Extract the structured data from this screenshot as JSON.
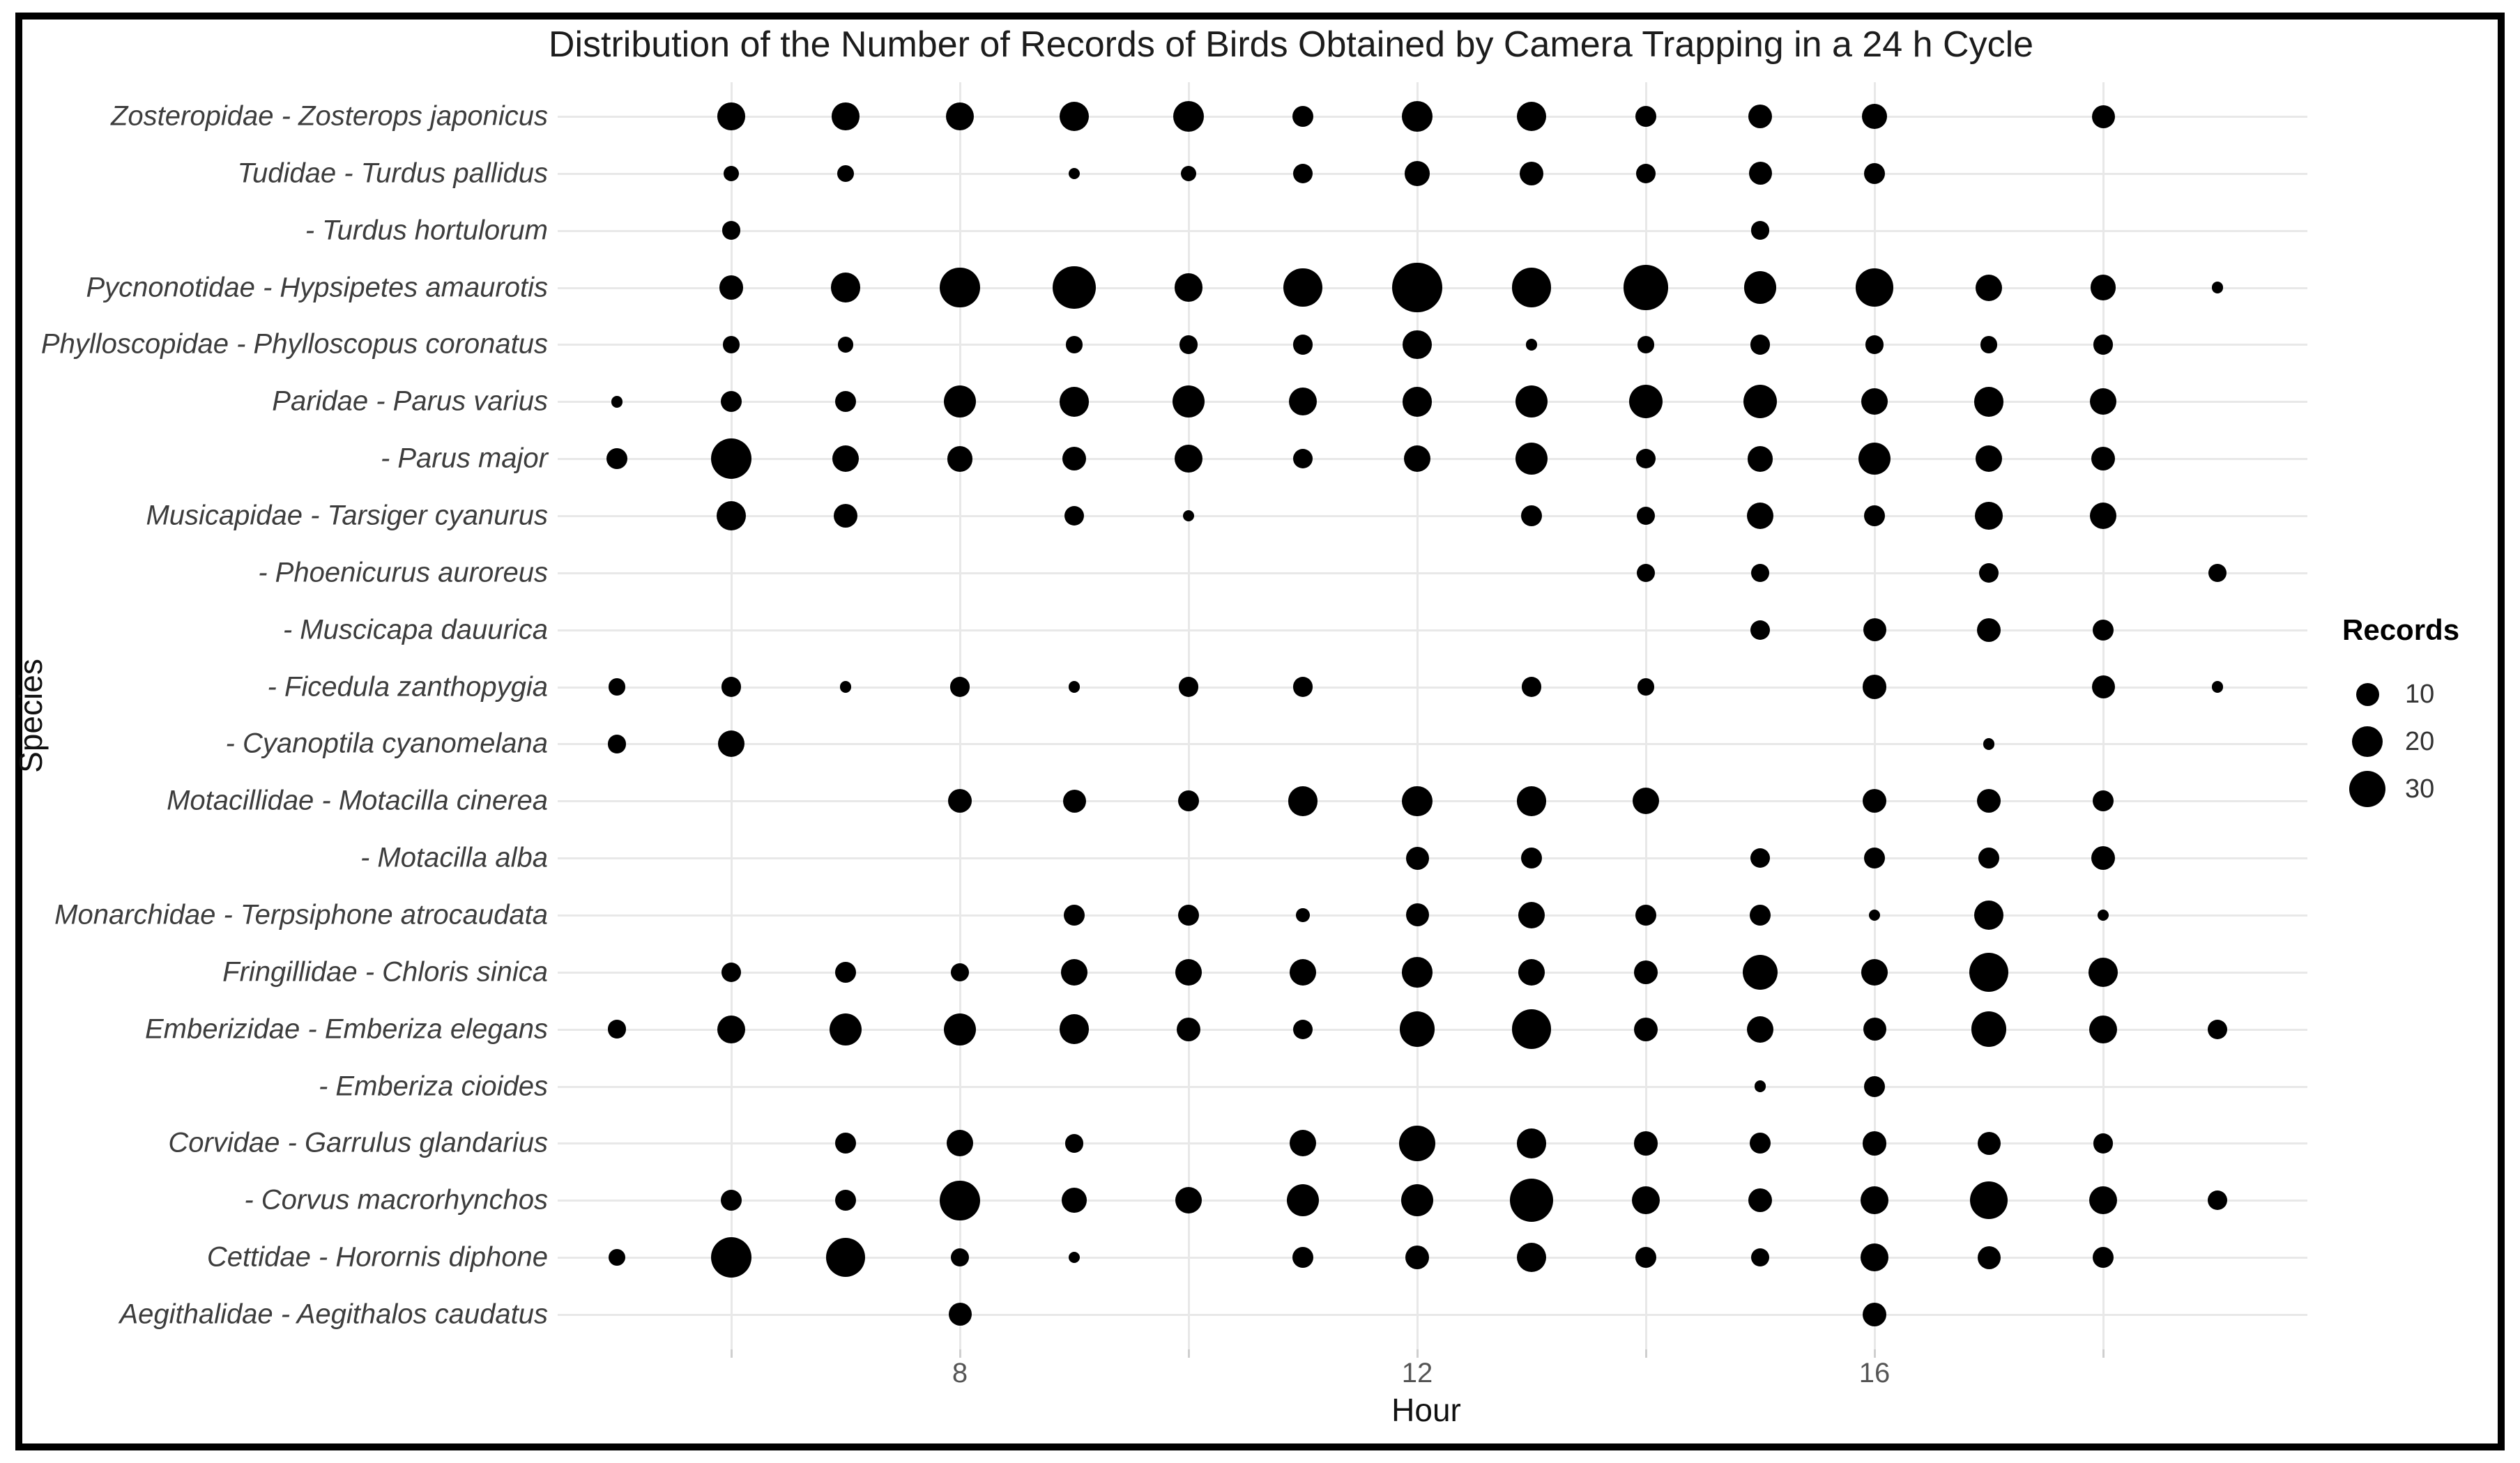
{
  "title": "Distribution of the Number of Records of Birds Obtained by Camera Trapping in a 24 h Cycle",
  "axes": {
    "x_label": "Hour",
    "y_label": "Species",
    "x_tick_labels": [
      "8",
      "12",
      "16"
    ],
    "x_ticks": [
      8,
      12,
      16
    ],
    "x_gridline_hours": [
      6,
      8,
      10,
      12,
      14,
      16,
      18
    ]
  },
  "legend": {
    "title": "Records",
    "entries": [
      {
        "label": "10",
        "value": 10
      },
      {
        "label": "20",
        "value": 20
      },
      {
        "label": "30",
        "value": 30
      }
    ]
  },
  "colors": {
    "dot": "#000000",
    "grid": "#e8e8e8",
    "tick_text": "#555555",
    "species_text": "#3d3d3d",
    "title_text": "#1c1c1c"
  },
  "chart_data": {
    "type": "scatter",
    "subtype": "bubble-size-matrix",
    "title": "Distribution of the Number of Records of Birds Obtained by Camera Trapping in a 24 h Cycle",
    "xlabel": "Hour",
    "ylabel": "Species",
    "xlim": [
      4.5,
      19.8
    ],
    "x_ticks": [
      8,
      12,
      16
    ],
    "grid": "on",
    "legend_position": "right",
    "size_legend_values": [
      10,
      20,
      30
    ],
    "hour_range_observed": [
      5,
      19
    ],
    "series": [
      {
        "label": "Zosteropidae - Zosterops japonicus",
        "records_by_hour": {
          "6": 15,
          "7": 15,
          "8": 16,
          "9": 18,
          "10": 20,
          "11": 8,
          "12": 20,
          "13": 18,
          "14": 8,
          "15": 11,
          "16": 12,
          "18": 10
        }
      },
      {
        "label": "Tudidae - Turdus pallidus",
        "records_by_hour": {
          "6": 4,
          "7": 5,
          "9": 2,
          "10": 4,
          "11": 7,
          "12": 12,
          "13": 11,
          "14": 7,
          "15": 10,
          "16": 8
        }
      },
      {
        "label": "- Turdus hortulorum",
        "records_by_hour": {
          "6": 6,
          "15": 6
        }
      },
      {
        "label": "Pycnonotidae - Hypsipetes amaurotis",
        "records_by_hour": {
          "6": 11,
          "7": 18,
          "8": 36,
          "9": 43,
          "10": 16,
          "11": 33,
          "12": 60,
          "13": 35,
          "14": 48,
          "15": 22,
          "16": 32,
          "17": 14,
          "18": 13,
          "19": 2
        }
      },
      {
        "label": "Phylloscopidae - Phylloscopus coronatus",
        "records_by_hour": {
          "6": 5,
          "7": 4,
          "9": 5,
          "10": 6,
          "11": 7,
          "12": 17,
          "13": 2,
          "14": 5,
          "15": 7,
          "16": 6,
          "17": 5,
          "18": 7
        }
      },
      {
        "label": "Paridae - Parus varius",
        "records_by_hour": {
          "5": 2,
          "6": 8,
          "7": 8,
          "8": 22,
          "9": 18,
          "10": 22,
          "11": 16,
          "12": 18,
          "13": 22,
          "14": 24,
          "15": 24,
          "16": 14,
          "17": 18,
          "18": 14
        }
      },
      {
        "label": "- Parus major",
        "records_by_hour": {
          "5": 8,
          "6": 38,
          "7": 14,
          "8": 13,
          "9": 11,
          "10": 16,
          "11": 7,
          "12": 14,
          "13": 22,
          "14": 7,
          "15": 13,
          "16": 22,
          "17": 14,
          "18": 11
        }
      },
      {
        "label": "Musicapidae - Tarsiger cyanurus",
        "records_by_hour": {
          "6": 18,
          "7": 11,
          "9": 7,
          "10": 2,
          "13": 8,
          "14": 6,
          "15": 14,
          "16": 8,
          "17": 16,
          "18": 14
        }
      },
      {
        "label": "- Phoenicurus auroreus",
        "records_by_hour": {
          "14": 6,
          "15": 6,
          "17": 7,
          "19": 6
        }
      },
      {
        "label": "- Muscicapa dauurica",
        "records_by_hour": {
          "15": 7,
          "16": 10,
          "17": 11,
          "18": 8
        }
      },
      {
        "label": "- Ficedula zanthopygia",
        "records_by_hour": {
          "5": 5,
          "6": 7,
          "7": 2,
          "8": 7,
          "9": 2,
          "10": 7,
          "11": 7,
          "13": 7,
          "14": 5,
          "16": 11,
          "18": 10,
          "19": 2
        }
      },
      {
        "label": "- Cyanoptila cyanomelana",
        "records_by_hour": {
          "5": 6,
          "6": 14,
          "17": 2
        }
      },
      {
        "label": "Motacillidae - Motacilla cinerea",
        "records_by_hour": {
          "8": 11,
          "9": 10,
          "10": 8,
          "11": 18,
          "12": 19,
          "13": 18,
          "14": 14,
          "16": 11,
          "17": 11,
          "18": 8
        }
      },
      {
        "label": "- Motacilla alba",
        "records_by_hour": {
          "12": 10,
          "13": 8,
          "15": 7,
          "16": 8,
          "17": 8,
          "18": 11
        }
      },
      {
        "label": "Monarchidae - Terpsiphone atrocaudata",
        "records_by_hour": {
          "9": 8,
          "10": 8,
          "11": 3,
          "12": 10,
          "13": 14,
          "14": 8,
          "15": 8,
          "16": 2,
          "17": 18,
          "18": 2
        }
      },
      {
        "label": "Fringillidae - Chloris sinica",
        "records_by_hour": {
          "6": 7,
          "7": 8,
          "8": 6,
          "9": 14,
          "10": 14,
          "11": 14,
          "12": 19,
          "13": 14,
          "14": 11,
          "15": 27,
          "16": 14,
          "17": 35,
          "18": 18
        }
      },
      {
        "label": "Emberizidae - Emberiza elegans",
        "records_by_hour": {
          "5": 6,
          "6": 16,
          "7": 22,
          "8": 22,
          "9": 18,
          "10": 11,
          "11": 7,
          "12": 27,
          "13": 35,
          "14": 11,
          "15": 14,
          "16": 10,
          "17": 27,
          "18": 16,
          "19": 7
        }
      },
      {
        "label": "- Emberiza cioides",
        "records_by_hour": {
          "15": 2,
          "16": 8
        }
      },
      {
        "label": "Corvidae - Garrulus glandarius",
        "records_by_hour": {
          "7": 8,
          "8": 14,
          "9": 6,
          "11": 14,
          "12": 28,
          "13": 18,
          "14": 11,
          "15": 8,
          "16": 11,
          "17": 10,
          "18": 7
        }
      },
      {
        "label": "- Corvus macrorhynchos",
        "records_by_hour": {
          "6": 8,
          "7": 8,
          "8": 36,
          "9": 12,
          "10": 14,
          "11": 22,
          "12": 22,
          "13": 43,
          "14": 16,
          "15": 11,
          "16": 16,
          "17": 32,
          "18": 16,
          "19": 7
        }
      },
      {
        "label": "Cettidae - Horornis diphone",
        "records_by_hour": {
          "5": 5,
          "6": 38,
          "7": 35,
          "8": 6,
          "9": 2,
          "11": 8,
          "12": 11,
          "13": 18,
          "14": 8,
          "15": 6,
          "16": 16,
          "17": 10,
          "18": 8
        }
      },
      {
        "label": "Aegithalidae - Aegithalos caudatus",
        "records_by_hour": {
          "8": 10,
          "16": 11
        }
      }
    ]
  }
}
